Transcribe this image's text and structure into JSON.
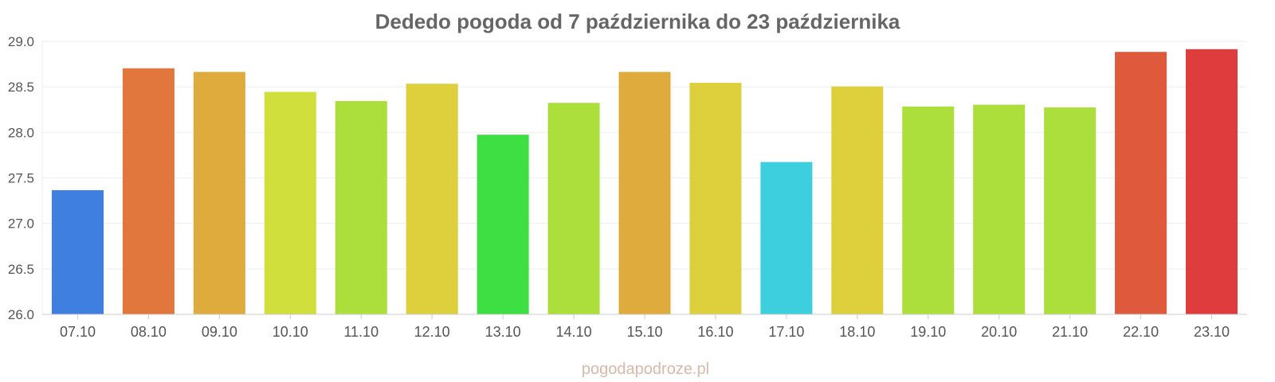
{
  "chart_data": {
    "type": "bar",
    "title": "Dededo pogoda od 7 października do 23 października",
    "xlabel": "",
    "ylabel": "",
    "ylim": [
      26.0,
      29.0
    ],
    "yticks": [
      "26.0",
      "26.5",
      "27.0",
      "27.5",
      "28.0",
      "28.5",
      "29.0"
    ],
    "grid": true,
    "categories": [
      "07.10",
      "08.10",
      "09.10",
      "10.10",
      "11.10",
      "12.10",
      "13.10",
      "14.10",
      "15.10",
      "16.10",
      "17.10",
      "18.10",
      "19.10",
      "20.10",
      "21.10",
      "22.10",
      "23.10"
    ],
    "values": [
      27.36,
      28.7,
      28.66,
      28.44,
      28.34,
      28.53,
      27.97,
      28.32,
      28.66,
      28.54,
      27.67,
      28.5,
      28.28,
      28.3,
      28.27,
      28.88,
      28.91
    ],
    "colors": [
      "#3478dd",
      "#e07033",
      "#dca632",
      "#cedd32",
      "#a8dd32",
      "#dccc32",
      "#34dd38",
      "#a8dd32",
      "#dca632",
      "#dccc32",
      "#34ccdd",
      "#dccc32",
      "#a8dd32",
      "#a8dd32",
      "#a8dd32",
      "#dd5033",
      "#dd3333"
    ]
  },
  "watermark": "pogodapodroze.pl"
}
